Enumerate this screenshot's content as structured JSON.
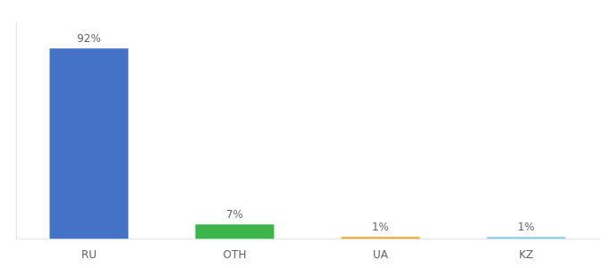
{
  "chart_data": {
    "type": "bar",
    "categories": [
      "RU",
      "OTH",
      "UA",
      "KZ"
    ],
    "values": [
      92,
      7,
      1,
      1
    ],
    "value_labels": [
      "92%",
      "7%",
      "1%",
      "1%"
    ],
    "colors": [
      "#4472c4",
      "#3cb54a",
      "#f5a623",
      "#87ceeb"
    ],
    "ylim": [
      0,
      105
    ],
    "grid": false,
    "data_labels": true,
    "tick_labels": "x"
  }
}
